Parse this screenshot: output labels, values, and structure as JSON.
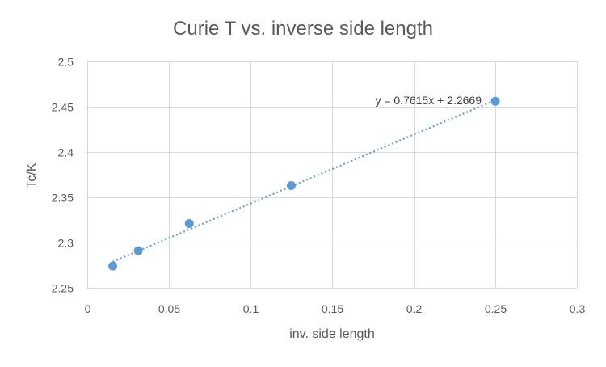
{
  "chart_data": {
    "type": "scatter",
    "title": "Curie T vs. inverse side length",
    "xlabel": "inv. side length",
    "ylabel": "Tc/K",
    "xlim": [
      0,
      0.3
    ],
    "ylim": [
      2.25,
      2.5
    ],
    "x_ticks": [
      0,
      0.05,
      0.1,
      0.15,
      0.2,
      0.25,
      0.3
    ],
    "x_tick_labels": [
      "0",
      "0.05",
      "0.1",
      "0.15",
      "0.2",
      "0.25",
      "0.3"
    ],
    "y_ticks": [
      2.25,
      2.3,
      2.35,
      2.4,
      2.45,
      2.5
    ],
    "y_tick_labels": [
      "2.25",
      "2.3",
      "2.35",
      "2.4",
      "2.45",
      "2.5"
    ],
    "grid": true,
    "series": [
      {
        "x": [
          0.015625,
          0.03125,
          0.0625,
          0.125,
          0.25
        ],
        "y": [
          2.274,
          2.291,
          2.321,
          2.363,
          2.456
        ],
        "color": "#5b9bd5"
      }
    ],
    "trendline": {
      "type": "linear",
      "slope": 0.7615,
      "intercept": 2.2669,
      "x_range": [
        0.015625,
        0.25
      ],
      "equation_label": "y = 0.7615x + 2.2669",
      "color": "#5b9bd5",
      "style": "dotted"
    },
    "colors": {
      "gridline": "#d9d9d9",
      "axis_text": "#595959",
      "title_text": "#595959"
    }
  }
}
